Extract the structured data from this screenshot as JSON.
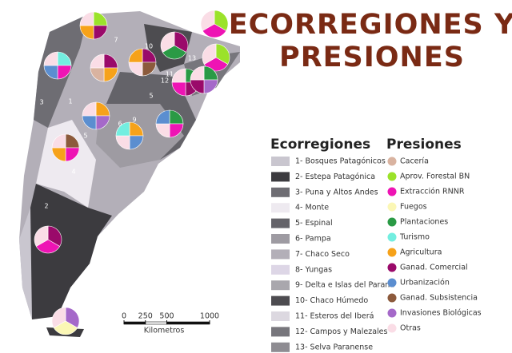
{
  "title_lines": [
    "ECORREGIONES Y",
    "PRESIONES"
  ],
  "map": {
    "region_labels": [
      "7",
      "10",
      "13",
      "11",
      "12",
      "5",
      "3",
      "1",
      "5",
      "6",
      "9",
      "4",
      "2"
    ],
    "scale": {
      "ticks": [
        0,
        250,
        500,
        1000
      ],
      "unit": "Kilometros"
    }
  },
  "legend_ecorregiones": {
    "title": "Ecorregiones",
    "items": [
      {
        "label": "1- Bosques Patagónicos",
        "color": "#c9c6cf"
      },
      {
        "label": "2- Estepa Patagónica",
        "color": "#3c3b3f"
      },
      {
        "label": "3- Puna y Altos Andes",
        "color": "#6e6d73"
      },
      {
        "label": "4- Monte",
        "color": "#eeeaf0"
      },
      {
        "label": "5- Espinal",
        "color": "#646369"
      },
      {
        "label": "6- Pampa",
        "color": "#9e9ba2"
      },
      {
        "label": "7- Chaco Seco",
        "color": "#b3afb8"
      },
      {
        "label": "8- Yungas",
        "color": "#ddd6e6"
      },
      {
        "label": "9- Delta e Islas del Paraná",
        "color": "#a9a7ad"
      },
      {
        "label": "10- Chaco Húmedo",
        "color": "#4d4c50"
      },
      {
        "label": "11- Esteros del Iberá",
        "color": "#dcd8e0"
      },
      {
        "label": "12- Campos y Malezales",
        "color": "#77767c"
      },
      {
        "label": "13- Selva Paranense",
        "color": "#8e8c92"
      }
    ]
  },
  "legend_presiones": {
    "title": "Presiones",
    "items": [
      {
        "label": "Cacería",
        "color": "#d9b3a0"
      },
      {
        "label": "Aprov. Forestal BN",
        "color": "#9be22a"
      },
      {
        "label": "Extracción RNNR",
        "color": "#ee14b4"
      },
      {
        "label": "Fuegos",
        "color": "#fbf7b5"
      },
      {
        "label": "Plantaciones",
        "color": "#2a9a45"
      },
      {
        "label": "Turismo",
        "color": "#73eee0"
      },
      {
        "label": "Agricultura",
        "color": "#f6a21a"
      },
      {
        "label": "Ganad. Comercial",
        "color": "#9a0a6a"
      },
      {
        "label": "Urbanización",
        "color": "#5b8ed0"
      },
      {
        "label": "Ganad. Subsistencia",
        "color": "#8c5a3c"
      },
      {
        "label": "Invasiones Biológicas",
        "color": "#a569c9"
      },
      {
        "label": "Otras",
        "color": "#fadde6"
      }
    ]
  }
}
